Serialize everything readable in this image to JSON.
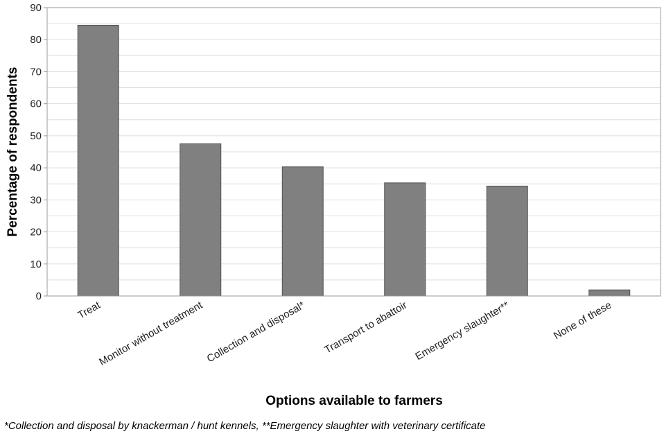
{
  "chart_data": {
    "type": "bar",
    "categories": [
      "Treat",
      "Monitor without treatment",
      "Collection and disposal*",
      "Transport to abattoir",
      "Emergency slaughter**",
      "None of these"
    ],
    "values": [
      84.5,
      47.5,
      40.3,
      35.3,
      34.3,
      1.9
    ],
    "xlabel": "Options available to farmers",
    "ylabel": "Percentage of respondents",
    "ylim": [
      0,
      90
    ],
    "yticks": [
      0,
      10,
      20,
      30,
      40,
      50,
      60,
      70,
      80,
      90
    ],
    "grid": true,
    "legend": "none",
    "colors": {
      "bar": "#808080",
      "bar_edge": "#505050",
      "grid": "#dddddd",
      "axis": "#999999"
    }
  },
  "footnote": "*Collection and disposal by knackerman / hunt kennels, **Emergency slaughter with veterinary certificate"
}
